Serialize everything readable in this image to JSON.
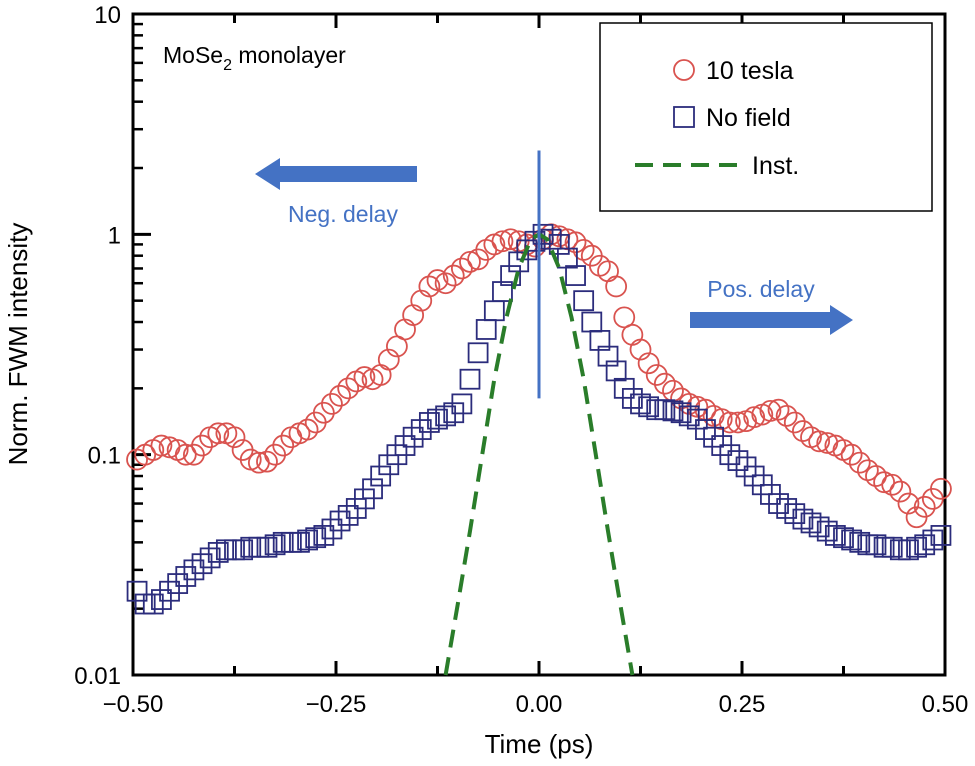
{
  "chart_data": {
    "type": "scatter",
    "title": "",
    "xlabel": "Time (ps)",
    "ylabel": "Norm. FWM intensity",
    "xlim": [
      -0.5,
      0.5
    ],
    "ylim": [
      0.01,
      10
    ],
    "yscale": "log",
    "grid": false,
    "x_ticks": [
      -0.5,
      -0.25,
      0.0,
      0.25,
      0.5
    ],
    "x_tick_labels": [
      "−0.50",
      "−0.25",
      "0.00",
      "0.25",
      "0.50"
    ],
    "y_ticks": [
      0.01,
      0.1,
      1,
      10
    ],
    "y_tick_labels": [
      "0.01",
      "0.1",
      "1",
      "10"
    ],
    "sample_label": {
      "main": "MoSe",
      "sub": "2",
      "rest": " monolayer"
    },
    "legend_position": "top-right",
    "series": [
      {
        "name": "10 tesla",
        "marker": "circle",
        "color": "#d9534f",
        "x": [
          -0.495,
          -0.485,
          -0.475,
          -0.465,
          -0.455,
          -0.445,
          -0.435,
          -0.425,
          -0.415,
          -0.405,
          -0.395,
          -0.385,
          -0.375,
          -0.365,
          -0.355,
          -0.345,
          -0.335,
          -0.325,
          -0.315,
          -0.305,
          -0.295,
          -0.285,
          -0.275,
          -0.265,
          -0.255,
          -0.245,
          -0.235,
          -0.225,
          -0.215,
          -0.205,
          -0.195,
          -0.185,
          -0.175,
          -0.165,
          -0.155,
          -0.145,
          -0.135,
          -0.125,
          -0.115,
          -0.105,
          -0.095,
          -0.085,
          -0.075,
          -0.065,
          -0.055,
          -0.045,
          -0.035,
          -0.025,
          -0.015,
          -0.005,
          0.005,
          0.015,
          0.025,
          0.035,
          0.045,
          0.055,
          0.065,
          0.075,
          0.085,
          0.095,
          0.105,
          0.115,
          0.125,
          0.135,
          0.145,
          0.155,
          0.165,
          0.175,
          0.185,
          0.195,
          0.205,
          0.215,
          0.225,
          0.235,
          0.245,
          0.255,
          0.265,
          0.275,
          0.285,
          0.295,
          0.305,
          0.315,
          0.325,
          0.335,
          0.345,
          0.355,
          0.365,
          0.375,
          0.385,
          0.395,
          0.405,
          0.415,
          0.425,
          0.435,
          0.445,
          0.455,
          0.465,
          0.475,
          0.485,
          0.495
        ],
        "y": [
          0.095,
          0.1,
          0.105,
          0.11,
          0.108,
          0.105,
          0.1,
          0.1,
          0.11,
          0.12,
          0.125,
          0.125,
          0.12,
          0.105,
          0.095,
          0.092,
          0.093,
          0.1,
          0.11,
          0.12,
          0.125,
          0.13,
          0.14,
          0.155,
          0.17,
          0.185,
          0.2,
          0.215,
          0.225,
          0.22,
          0.23,
          0.27,
          0.31,
          0.37,
          0.43,
          0.5,
          0.58,
          0.62,
          0.6,
          0.65,
          0.7,
          0.75,
          0.77,
          0.85,
          0.9,
          0.93,
          0.95,
          0.93,
          0.9,
          0.88,
          0.95,
          1.0,
          0.98,
          0.95,
          0.92,
          0.85,
          0.8,
          0.72,
          0.68,
          0.58,
          0.42,
          0.35,
          0.3,
          0.26,
          0.23,
          0.21,
          0.195,
          0.18,
          0.17,
          0.165,
          0.16,
          0.15,
          0.145,
          0.14,
          0.14,
          0.142,
          0.148,
          0.152,
          0.158,
          0.16,
          0.15,
          0.14,
          0.128,
          0.12,
          0.115,
          0.113,
          0.11,
          0.105,
          0.1,
          0.092,
          0.085,
          0.08,
          0.075,
          0.073,
          0.068,
          0.06,
          0.052,
          0.058,
          0.063,
          0.07
        ]
      },
      {
        "name": "No field",
        "marker": "square",
        "color": "#2b2c7c",
        "x": [
          -0.495,
          -0.485,
          -0.475,
          -0.465,
          -0.455,
          -0.445,
          -0.435,
          -0.425,
          -0.415,
          -0.405,
          -0.395,
          -0.385,
          -0.375,
          -0.365,
          -0.355,
          -0.345,
          -0.335,
          -0.325,
          -0.315,
          -0.305,
          -0.295,
          -0.285,
          -0.275,
          -0.265,
          -0.255,
          -0.245,
          -0.235,
          -0.225,
          -0.215,
          -0.205,
          -0.195,
          -0.185,
          -0.175,
          -0.165,
          -0.155,
          -0.145,
          -0.135,
          -0.125,
          -0.115,
          -0.105,
          -0.095,
          -0.085,
          -0.075,
          -0.065,
          -0.055,
          -0.045,
          -0.035,
          -0.025,
          -0.015,
          -0.005,
          0.005,
          0.015,
          0.025,
          0.035,
          0.045,
          0.055,
          0.065,
          0.075,
          0.085,
          0.095,
          0.105,
          0.115,
          0.125,
          0.135,
          0.145,
          0.155,
          0.165,
          0.175,
          0.185,
          0.195,
          0.205,
          0.215,
          0.225,
          0.235,
          0.245,
          0.255,
          0.265,
          0.275,
          0.285,
          0.295,
          0.305,
          0.315,
          0.325,
          0.335,
          0.345,
          0.355,
          0.365,
          0.375,
          0.385,
          0.395,
          0.405,
          0.415,
          0.425,
          0.435,
          0.445,
          0.455,
          0.465,
          0.475,
          0.485,
          0.495
        ],
        "y": [
          0.024,
          0.021,
          0.021,
          0.022,
          0.024,
          0.026,
          0.028,
          0.03,
          0.032,
          0.034,
          0.036,
          0.037,
          0.037,
          0.037,
          0.038,
          0.038,
          0.038,
          0.039,
          0.04,
          0.04,
          0.04,
          0.041,
          0.042,
          0.043,
          0.046,
          0.05,
          0.053,
          0.057,
          0.063,
          0.07,
          0.08,
          0.09,
          0.1,
          0.11,
          0.12,
          0.13,
          0.14,
          0.145,
          0.15,
          0.155,
          0.17,
          0.22,
          0.29,
          0.37,
          0.45,
          0.55,
          0.65,
          0.75,
          0.85,
          0.93,
          1.0,
          0.95,
          0.9,
          0.78,
          0.65,
          0.5,
          0.4,
          0.33,
          0.28,
          0.24,
          0.2,
          0.18,
          0.17,
          0.165,
          0.16,
          0.16,
          0.158,
          0.155,
          0.15,
          0.145,
          0.13,
          0.12,
          0.11,
          0.1,
          0.094,
          0.088,
          0.08,
          0.073,
          0.066,
          0.06,
          0.057,
          0.054,
          0.051,
          0.049,
          0.047,
          0.045,
          0.043,
          0.042,
          0.041,
          0.04,
          0.039,
          0.039,
          0.038,
          0.038,
          0.037,
          0.037,
          0.038,
          0.039,
          0.041,
          0.043
        ]
      },
      {
        "name": "Inst.",
        "marker": "dashed-line",
        "color": "#2a7d2a",
        "x": [
          -0.115,
          -0.1,
          -0.085,
          -0.07,
          -0.055,
          -0.04,
          -0.025,
          -0.01,
          0.0,
          0.01,
          0.025,
          0.04,
          0.055,
          0.07,
          0.085,
          0.1,
          0.115
        ],
        "y": [
          0.01,
          0.021,
          0.045,
          0.1,
          0.22,
          0.42,
          0.7,
          0.95,
          1.0,
          0.95,
          0.7,
          0.42,
          0.22,
          0.1,
          0.045,
          0.021,
          0.01
        ]
      }
    ],
    "annotations": [
      {
        "text": "Neg. delay",
        "arrow": "left",
        "color": "#4472c4"
      },
      {
        "text": "Pos. delay",
        "arrow": "right",
        "color": "#4472c4"
      }
    ],
    "vertical_marker": {
      "x": 0.0,
      "y_range": [
        0.18,
        2.4
      ],
      "color": "#4472c4"
    }
  }
}
